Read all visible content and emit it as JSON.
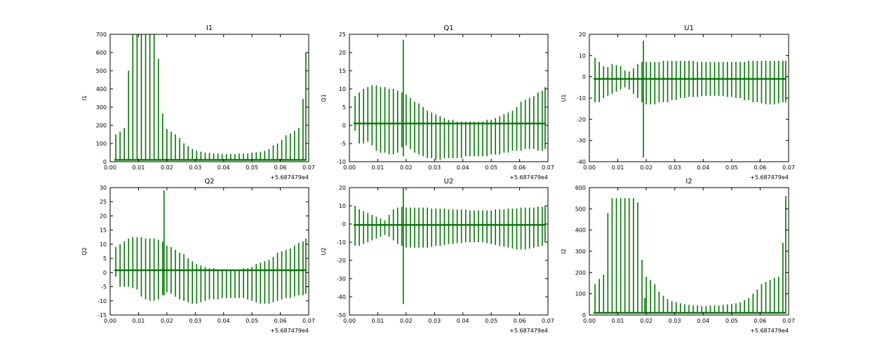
{
  "colors": {
    "line": "#007700",
    "axes": "#000000",
    "background": "#ffffff"
  },
  "chart_data": [
    {
      "type": "line",
      "title": "I1",
      "ylabel": "I1",
      "xlim": [
        0.0,
        0.07
      ],
      "ylim": [
        0,
        700
      ],
      "xticks": [
        "0.00",
        "0.01",
        "0.02",
        "0.03",
        "0.04",
        "0.05",
        "0.06",
        "0.07"
      ],
      "yticks": [
        "0",
        "100",
        "200",
        "300",
        "400",
        "500",
        "600",
        "700"
      ],
      "x_offset_label": "+5.687479e4",
      "baseline": 10,
      "spikes": {
        "x": [
          0.002,
          0.0035,
          0.005,
          0.0065,
          0.008,
          0.0095,
          0.011,
          0.0125,
          0.014,
          0.0155,
          0.017,
          0.0185,
          0.02,
          0.0215,
          0.023,
          0.0245,
          0.026,
          0.0275,
          0.029,
          0.0305,
          0.032,
          0.0335,
          0.035,
          0.0365,
          0.038,
          0.0395,
          0.041,
          0.0425,
          0.044,
          0.0455,
          0.047,
          0.0485,
          0.05,
          0.0515,
          0.053,
          0.0545,
          0.056,
          0.0575,
          0.059,
          0.0605,
          0.062,
          0.0635,
          0.065,
          0.0665,
          0.068,
          0.069
        ],
        "high": [
          150,
          165,
          185,
          500,
          700,
          700,
          700,
          700,
          700,
          700,
          565,
          265,
          180,
          165,
          150,
          130,
          100,
          85,
          70,
          60,
          55,
          50,
          48,
          45,
          45,
          42,
          42,
          42,
          42,
          45,
          45,
          45,
          50,
          52,
          55,
          60,
          70,
          90,
          100,
          120,
          145,
          155,
          170,
          185,
          345,
          600
        ],
        "low": [
          10,
          10,
          10,
          10,
          10,
          10,
          10,
          10,
          10,
          10,
          10,
          10,
          10,
          10,
          10,
          10,
          10,
          10,
          10,
          10,
          10,
          10,
          10,
          10,
          10,
          10,
          10,
          10,
          10,
          10,
          10,
          10,
          10,
          10,
          10,
          10,
          10,
          10,
          10,
          10,
          10,
          10,
          10,
          10,
          10,
          10
        ]
      }
    },
    {
      "type": "line",
      "title": "Q1",
      "ylabel": "Q1",
      "xlim": [
        0.0,
        0.07
      ],
      "ylim": [
        -10,
        25
      ],
      "xticks": [
        "0.00",
        "0.01",
        "0.02",
        "0.03",
        "0.04",
        "0.05",
        "0.06",
        "0.07"
      ],
      "yticks": [
        "-10",
        "-5",
        "0",
        "5",
        "10",
        "15",
        "20",
        "25"
      ],
      "x_offset_label": "+5.687479e4",
      "baseline": 0.5,
      "spikes": {
        "x": [
          0.002,
          0.0035,
          0.005,
          0.0065,
          0.008,
          0.0095,
          0.011,
          0.0125,
          0.014,
          0.0155,
          0.017,
          0.0185,
          0.019,
          0.02,
          0.0215,
          0.023,
          0.0245,
          0.026,
          0.0275,
          0.029,
          0.0305,
          0.032,
          0.0335,
          0.035,
          0.0365,
          0.038,
          0.0395,
          0.041,
          0.0425,
          0.044,
          0.0455,
          0.047,
          0.0485,
          0.05,
          0.0515,
          0.053,
          0.0545,
          0.056,
          0.0575,
          0.059,
          0.0605,
          0.062,
          0.0635,
          0.065,
          0.0665,
          0.068,
          0.069
        ],
        "high": [
          8,
          9,
          10,
          10.5,
          11,
          11,
          10.5,
          10.5,
          10,
          10,
          9.5,
          9,
          23.5,
          8.5,
          7.5,
          6.5,
          6,
          5,
          4,
          3.5,
          3,
          2.5,
          2,
          1.5,
          1.5,
          1,
          1,
          1,
          1,
          1,
          1,
          1,
          1.5,
          1.5,
          2,
          2.5,
          3,
          3.5,
          4,
          5,
          6.5,
          7,
          7.5,
          8,
          9,
          9.5,
          10.5
        ],
        "low": [
          -1.5,
          -5,
          -5,
          -4.5,
          -5.5,
          -7,
          -7.5,
          -7.5,
          -8,
          -8,
          -7.5,
          -6,
          -8.5,
          -5.5,
          -6.5,
          -7.5,
          -8,
          -8.5,
          -9,
          -9,
          -9.5,
          -9.5,
          -9,
          -9,
          -9,
          -9,
          -9,
          -8.5,
          -8.5,
          -8.5,
          -8.5,
          -8.5,
          -8.5,
          -8,
          -8,
          -8,
          -7.5,
          -7.5,
          -7,
          -7,
          -7,
          -6.5,
          -6.5,
          -6.5,
          -7,
          -7,
          -6.5
        ]
      }
    },
    {
      "type": "line",
      "title": "U1",
      "ylabel": "U1",
      "xlim": [
        0.0,
        0.07
      ],
      "ylim": [
        -40,
        20
      ],
      "xticks": [
        "0.00",
        "0.01",
        "0.02",
        "0.03",
        "0.04",
        "0.05",
        "0.06",
        "0.07"
      ],
      "yticks": [
        "-40",
        "-30",
        "-20",
        "-10",
        "0",
        "10",
        "20"
      ],
      "x_offset_label": "+5.687479e4",
      "baseline": -1,
      "spikes": {
        "x": [
          0.002,
          0.0035,
          0.005,
          0.0065,
          0.008,
          0.0095,
          0.011,
          0.0125,
          0.014,
          0.0155,
          0.017,
          0.0185,
          0.019,
          0.02,
          0.0215,
          0.023,
          0.0245,
          0.026,
          0.0275,
          0.029,
          0.0305,
          0.032,
          0.0335,
          0.035,
          0.0365,
          0.038,
          0.0395,
          0.041,
          0.0425,
          0.044,
          0.0455,
          0.047,
          0.0485,
          0.05,
          0.0515,
          0.053,
          0.0545,
          0.056,
          0.0575,
          0.059,
          0.0605,
          0.062,
          0.0635,
          0.065,
          0.0665,
          0.068,
          0.069
        ],
        "high": [
          9,
          7,
          5,
          4.5,
          6,
          5.5,
          5,
          3,
          2.5,
          4,
          6,
          7,
          17,
          7,
          7,
          7,
          7,
          7.5,
          7.5,
          7.5,
          7.5,
          7.5,
          7.5,
          7.5,
          7.5,
          7,
          7,
          7,
          7,
          7,
          7,
          7,
          7,
          7,
          7,
          7,
          7,
          7.5,
          7.5,
          7.5,
          7.5,
          7.5,
          7.5,
          7.5,
          7.5,
          7.5,
          7.5
        ],
        "low": [
          -12,
          -12,
          -10,
          -9,
          -8,
          -7,
          -6,
          -5,
          -6,
          -8,
          -10,
          -12,
          -38,
          -13,
          -13,
          -13,
          -12,
          -12,
          -12,
          -11,
          -11,
          -10,
          -10,
          -9.5,
          -9.5,
          -9.5,
          -9,
          -9,
          -9,
          -9,
          -9,
          -9,
          -9.5,
          -9.5,
          -10,
          -10,
          -11,
          -11,
          -12,
          -12,
          -12.5,
          -13,
          -13,
          -13,
          -12.5,
          -12,
          -12
        ]
      }
    },
    {
      "type": "line",
      "title": "Q2",
      "ylabel": "Q2",
      "xlim": [
        0.0,
        0.07
      ],
      "ylim": [
        -15,
        30
      ],
      "xticks": [
        "0.00",
        "0.01",
        "0.02",
        "0.03",
        "0.04",
        "0.05",
        "0.06",
        "0.07"
      ],
      "yticks": [
        "-15",
        "-10",
        "-5",
        "0",
        "5",
        "10",
        "15",
        "20",
        "25",
        "30"
      ],
      "x_offset_label": "+5.687479e4",
      "baseline": 0.8,
      "spikes": {
        "x": [
          0.002,
          0.0035,
          0.005,
          0.0065,
          0.008,
          0.0095,
          0.011,
          0.0125,
          0.014,
          0.0155,
          0.017,
          0.0185,
          0.019,
          0.02,
          0.0215,
          0.023,
          0.0245,
          0.026,
          0.0275,
          0.029,
          0.0305,
          0.032,
          0.0335,
          0.035,
          0.0365,
          0.038,
          0.0395,
          0.041,
          0.0425,
          0.044,
          0.0455,
          0.047,
          0.0485,
          0.05,
          0.0515,
          0.053,
          0.0545,
          0.056,
          0.0575,
          0.059,
          0.0605,
          0.062,
          0.0635,
          0.065,
          0.0665,
          0.068,
          0.069
        ],
        "high": [
          9,
          10,
          11,
          12,
          12.5,
          12.5,
          12.5,
          12,
          12,
          12,
          11.5,
          11,
          29,
          9.5,
          9,
          8,
          7,
          6.5,
          5,
          4,
          3,
          2.5,
          2,
          1.5,
          1.5,
          1,
          1,
          1,
          1,
          1,
          1,
          1.5,
          1.5,
          2,
          3,
          3.5,
          4,
          4.5,
          5.5,
          7,
          7.5,
          8,
          8.5,
          9.5,
          10.5,
          11,
          12
        ],
        "low": [
          -1.5,
          -5,
          -5,
          -5,
          -5.5,
          -6,
          -8.5,
          -9.5,
          -10,
          -10,
          -9.5,
          -8,
          -8,
          -7,
          -7.5,
          -8.5,
          -9.5,
          -10,
          -10.5,
          -11,
          -11,
          -10.5,
          -10,
          -9.5,
          -9.5,
          -9.5,
          -9,
          -9,
          -9,
          -9,
          -9,
          -9,
          -9.5,
          -10,
          -10.5,
          -11,
          -11,
          -11,
          -10.5,
          -10,
          -9.5,
          -9,
          -9,
          -8.5,
          -8,
          -8,
          -7.5
        ]
      }
    },
    {
      "type": "line",
      "title": "U2",
      "ylabel": "U2",
      "xlim": [
        0.0,
        0.07
      ],
      "ylim": [
        -50,
        20
      ],
      "xticks": [
        "0.00",
        "0.01",
        "0.02",
        "0.03",
        "0.04",
        "0.05",
        "0.06",
        "0.07"
      ],
      "yticks": [
        "-50",
        "-40",
        "-30",
        "-20",
        "-10",
        "0",
        "10",
        "20"
      ],
      "x_offset_label": "+5.687479e4",
      "baseline": -0.5,
      "spikes": {
        "x": [
          0.002,
          0.0035,
          0.005,
          0.0065,
          0.008,
          0.0095,
          0.011,
          0.0125,
          0.014,
          0.0155,
          0.017,
          0.0185,
          0.019,
          0.02,
          0.0215,
          0.023,
          0.0245,
          0.026,
          0.0275,
          0.029,
          0.0305,
          0.032,
          0.0335,
          0.035,
          0.0365,
          0.038,
          0.0395,
          0.041,
          0.0425,
          0.044,
          0.0455,
          0.047,
          0.0485,
          0.05,
          0.0515,
          0.053,
          0.0545,
          0.056,
          0.0575,
          0.059,
          0.0605,
          0.062,
          0.0635,
          0.065,
          0.0665,
          0.068,
          0.069
        ],
        "high": [
          10,
          8,
          7,
          6,
          5,
          4,
          3,
          2,
          5,
          8,
          9,
          9.5,
          20,
          9,
          9,
          9,
          9,
          9,
          9,
          8.5,
          8.5,
          8.5,
          8.5,
          8,
          8,
          8,
          8,
          8,
          7.5,
          7.5,
          7.5,
          7.5,
          7.5,
          7.5,
          8,
          8,
          8,
          8.5,
          8.5,
          8.5,
          9,
          9,
          9,
          9,
          9.5,
          9.5,
          10
        ],
        "low": [
          -12,
          -12,
          -11,
          -10,
          -9,
          -8,
          -7,
          -6,
          -7,
          -9,
          -11,
          -12,
          -44,
          -13,
          -13,
          -13,
          -13,
          -13,
          -13,
          -12.5,
          -12,
          -12,
          -11.5,
          -11,
          -11,
          -10.5,
          -10.5,
          -10,
          -10,
          -10,
          -10,
          -10,
          -10.5,
          -11,
          -11.5,
          -12,
          -12.5,
          -13,
          -13.5,
          -14,
          -14,
          -14,
          -13.5,
          -13,
          -12.5,
          -12,
          -10
        ]
      }
    },
    {
      "type": "line",
      "title": "I2",
      "ylabel": "I2",
      "xlim": [
        0.0,
        0.07
      ],
      "ylim": [
        0,
        600
      ],
      "xticks": [
        "0.00",
        "0.01",
        "0.02",
        "0.03",
        "0.04",
        "0.05",
        "0.06",
        "0.07"
      ],
      "yticks": [
        "0",
        "100",
        "200",
        "300",
        "400",
        "500",
        "600"
      ],
      "x_offset_label": "+5.687479e4",
      "baseline": 10,
      "spikes": {
        "x": [
          0.002,
          0.0035,
          0.005,
          0.0065,
          0.008,
          0.0095,
          0.011,
          0.0125,
          0.014,
          0.0155,
          0.017,
          0.0185,
          0.0195,
          0.02,
          0.0215,
          0.023,
          0.0245,
          0.026,
          0.0275,
          0.029,
          0.0305,
          0.032,
          0.0335,
          0.035,
          0.0365,
          0.038,
          0.0395,
          0.041,
          0.0425,
          0.044,
          0.0455,
          0.047,
          0.0485,
          0.05,
          0.0515,
          0.053,
          0.0545,
          0.056,
          0.0575,
          0.059,
          0.0605,
          0.062,
          0.0635,
          0.065,
          0.0665,
          0.068,
          0.069
        ],
        "high": [
          145,
          170,
          190,
          480,
          550,
          550,
          550,
          550,
          550,
          550,
          530,
          260,
          80,
          180,
          165,
          145,
          110,
          90,
          75,
          65,
          60,
          55,
          50,
          48,
          45,
          45,
          42,
          42,
          45,
          45,
          45,
          48,
          50,
          52,
          55,
          60,
          70,
          80,
          100,
          120,
          145,
          155,
          165,
          175,
          180,
          340,
          560
        ],
        "low": [
          10,
          10,
          10,
          10,
          10,
          10,
          10,
          10,
          10,
          10,
          10,
          10,
          10,
          10,
          10,
          10,
          10,
          10,
          10,
          10,
          10,
          10,
          10,
          10,
          10,
          10,
          10,
          10,
          10,
          10,
          10,
          10,
          10,
          10,
          10,
          10,
          10,
          10,
          10,
          10,
          10,
          10,
          10,
          10,
          10,
          10,
          10
        ]
      }
    }
  ]
}
